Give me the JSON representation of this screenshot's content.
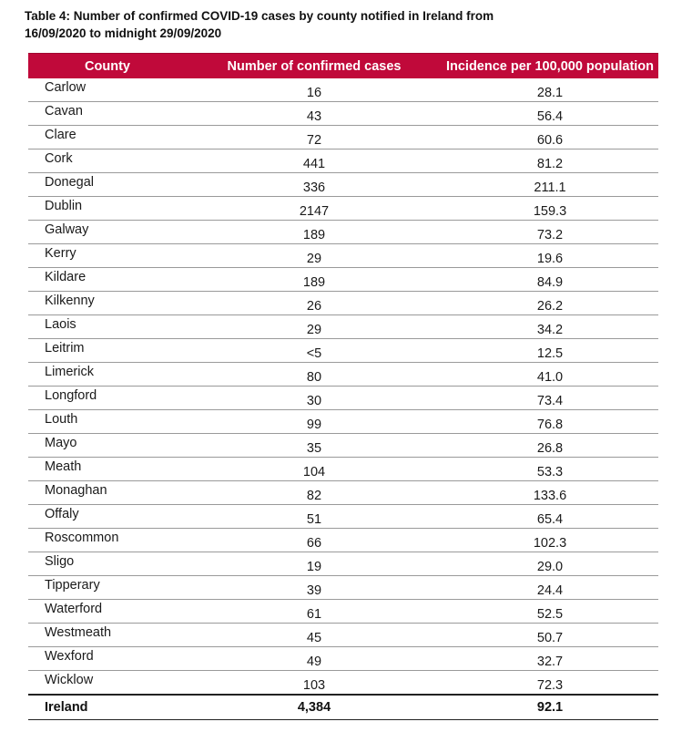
{
  "caption": "Table 4: Number of confirmed COVID-19 cases by county notified in Ireland from 16/09/2020 to midnight 29/09/2020",
  "table": {
    "headers": [
      "County",
      "Number of confirmed cases",
      "Incidence per 100,000 population"
    ],
    "rows": [
      {
        "county": "Carlow",
        "cases": "16",
        "incidence": "28.1"
      },
      {
        "county": "Cavan",
        "cases": "43",
        "incidence": "56.4"
      },
      {
        "county": "Clare",
        "cases": "72",
        "incidence": "60.6"
      },
      {
        "county": "Cork",
        "cases": "441",
        "incidence": "81.2"
      },
      {
        "county": "Donegal",
        "cases": "336",
        "incidence": "211.1"
      },
      {
        "county": "Dublin",
        "cases": "2147",
        "incidence": "159.3"
      },
      {
        "county": "Galway",
        "cases": "189",
        "incidence": "73.2"
      },
      {
        "county": "Kerry",
        "cases": "29",
        "incidence": "19.6"
      },
      {
        "county": "Kildare",
        "cases": "189",
        "incidence": "84.9"
      },
      {
        "county": "Kilkenny",
        "cases": "26",
        "incidence": "26.2"
      },
      {
        "county": "Laois",
        "cases": "29",
        "incidence": "34.2"
      },
      {
        "county": "Leitrim",
        "cases": "<5",
        "incidence": "12.5"
      },
      {
        "county": "Limerick",
        "cases": "80",
        "incidence": "41.0"
      },
      {
        "county": "Longford",
        "cases": "30",
        "incidence": "73.4"
      },
      {
        "county": "Louth",
        "cases": "99",
        "incidence": "76.8"
      },
      {
        "county": "Mayo",
        "cases": "35",
        "incidence": "26.8"
      },
      {
        "county": "Meath",
        "cases": "104",
        "incidence": "53.3"
      },
      {
        "county": "Monaghan",
        "cases": "82",
        "incidence": "133.6"
      },
      {
        "county": "Offaly",
        "cases": "51",
        "incidence": "65.4"
      },
      {
        "county": "Roscommon",
        "cases": "66",
        "incidence": "102.3"
      },
      {
        "county": "Sligo",
        "cases": "19",
        "incidence": "29.0"
      },
      {
        "county": "Tipperary",
        "cases": "39",
        "incidence": "24.4"
      },
      {
        "county": "Waterford",
        "cases": "61",
        "incidence": "52.5"
      },
      {
        "county": "Westmeath",
        "cases": "45",
        "incidence": "50.7"
      },
      {
        "county": "Wexford",
        "cases": "49",
        "incidence": "32.7"
      },
      {
        "county": "Wicklow",
        "cases": "103",
        "incidence": "72.3"
      }
    ],
    "total": {
      "county": "Ireland",
      "cases": "4,384",
      "incidence": "92.1"
    }
  },
  "colors": {
    "header_background": "#c0093a",
    "header_text": "#ffffff"
  }
}
